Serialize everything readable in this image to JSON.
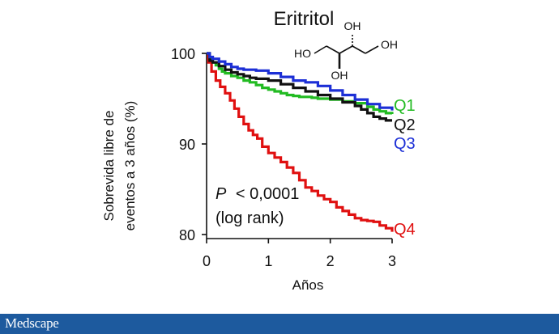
{
  "chart_data": {
    "type": "line",
    "step": true,
    "title": "Eritritol",
    "xlabel": "Años",
    "ylabel": "Sobrevida libre de eventos a 3 años (%)",
    "ylabel_lines": [
      "Sobrevida libre de",
      "eventos a 3 años (%)"
    ],
    "xlim": [
      0,
      3
    ],
    "ylim": [
      80,
      100
    ],
    "x_ticks": [
      0,
      1,
      2,
      3
    ],
    "y_ticks": [
      80,
      90,
      100
    ],
    "grid": false,
    "annotation": {
      "p_symbol": "P",
      "p_value": "< 0,0001",
      "method": "(log rank)"
    },
    "structure_labels": [
      "HO",
      "OH",
      "OH",
      "OH"
    ],
    "series": [
      {
        "name": "Q1",
        "color": "#22bb22",
        "x": [
          0,
          0.05,
          0.1,
          0.15,
          0.2,
          0.25,
          0.3,
          0.4,
          0.5,
          0.6,
          0.7,
          0.8,
          0.9,
          1.0,
          1.1,
          1.2,
          1.3,
          1.4,
          1.5,
          1.6,
          1.7,
          1.8,
          1.9,
          2.0,
          2.2,
          2.4,
          2.6,
          2.7,
          2.8,
          2.9,
          3.0
        ],
        "y": [
          100,
          99.4,
          99.0,
          98.7,
          98.3,
          98.0,
          97.8,
          97.5,
          97.3,
          97.0,
          96.8,
          96.5,
          96.2,
          96.0,
          95.8,
          95.6,
          95.4,
          95.3,
          95.2,
          95.2,
          95.1,
          95.0,
          95.0,
          94.9,
          94.7,
          94.5,
          94.1,
          93.8,
          93.6,
          93.4,
          93.3
        ]
      },
      {
        "name": "Q2",
        "color": "#111111",
        "x": [
          0,
          0.05,
          0.1,
          0.2,
          0.3,
          0.4,
          0.5,
          0.6,
          0.7,
          0.8,
          1.0,
          1.2,
          1.4,
          1.6,
          1.8,
          2.0,
          2.2,
          2.4,
          2.5,
          2.6,
          2.7,
          2.8,
          2.9,
          3.0
        ],
        "y": [
          100,
          99.2,
          99.0,
          98.6,
          98.2,
          97.9,
          97.7,
          97.5,
          97.3,
          97.2,
          97.0,
          96.6,
          96.2,
          95.8,
          95.4,
          95.0,
          94.6,
          94.2,
          93.8,
          93.4,
          93.0,
          92.8,
          92.6,
          92.6
        ]
      },
      {
        "name": "Q3",
        "color": "#1c2fd6",
        "x": [
          0,
          0.05,
          0.1,
          0.2,
          0.3,
          0.4,
          0.5,
          0.6,
          0.8,
          1.0,
          1.2,
          1.4,
          1.6,
          1.8,
          2.0,
          2.2,
          2.4,
          2.6,
          2.8,
          3.0
        ],
        "y": [
          100,
          99.6,
          99.4,
          99.1,
          98.8,
          98.5,
          98.3,
          98.2,
          98.1,
          97.8,
          97.4,
          97.0,
          96.8,
          96.4,
          95.9,
          95.4,
          94.9,
          94.4,
          94.0,
          93.7
        ]
      },
      {
        "name": "Q4",
        "color": "#e01010",
        "x": [
          0,
          0.03,
          0.08,
          0.15,
          0.22,
          0.3,
          0.38,
          0.45,
          0.52,
          0.6,
          0.68,
          0.75,
          0.82,
          0.9,
          1.0,
          1.1,
          1.2,
          1.3,
          1.4,
          1.5,
          1.6,
          1.7,
          1.8,
          1.9,
          2.0,
          2.1,
          2.2,
          2.3,
          2.4,
          2.5,
          2.6,
          2.7,
          2.8,
          2.9,
          3.0
        ],
        "y": [
          100,
          99.0,
          98.0,
          97.0,
          96.3,
          95.6,
          94.8,
          93.9,
          93.0,
          92.2,
          91.5,
          91.0,
          90.6,
          89.7,
          89.0,
          88.5,
          88.0,
          87.4,
          86.8,
          86.0,
          85.2,
          84.8,
          84.3,
          83.9,
          83.6,
          83.0,
          82.6,
          82.2,
          81.8,
          81.6,
          81.5,
          81.4,
          81.0,
          80.7,
          80.3
        ]
      }
    ]
  },
  "footer": {
    "brand": "Medscape",
    "color": "#1d5a9e"
  }
}
